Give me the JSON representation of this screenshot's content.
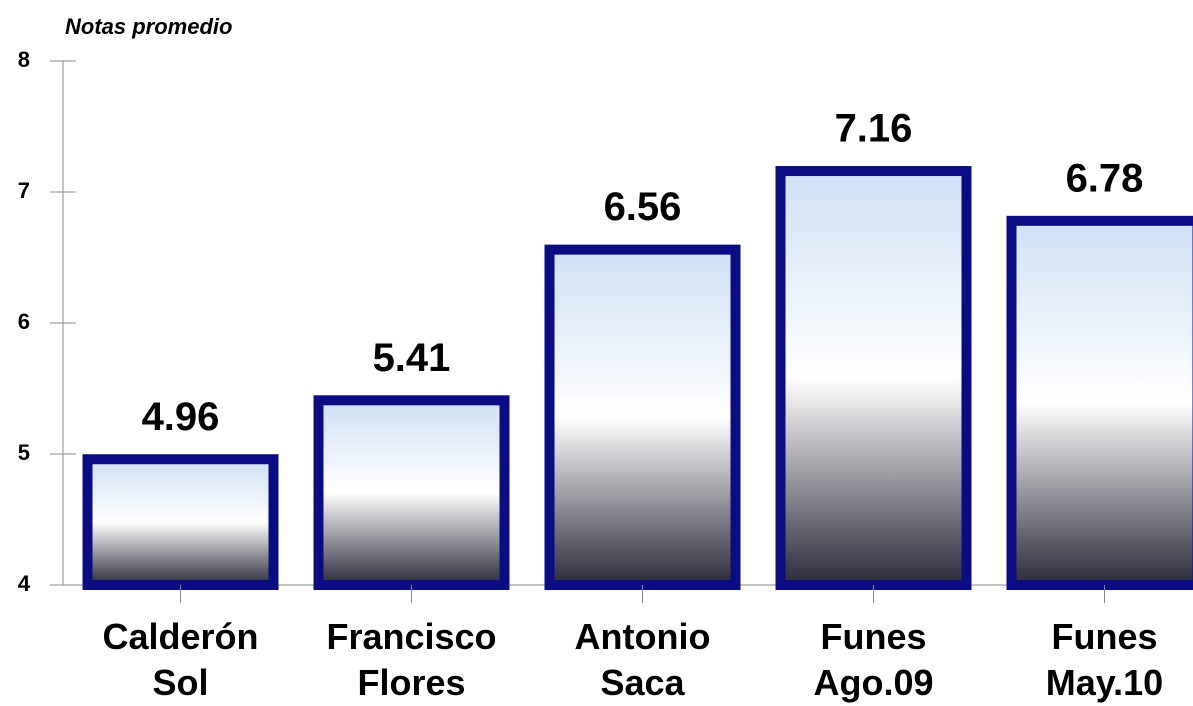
{
  "chart_data": {
    "type": "bar",
    "title": "Notas promedio",
    "categories": [
      "Calderón Sol",
      "Francisco Flores",
      "Antonio Saca",
      "Funes Ago.09",
      "Funes May.10"
    ],
    "values": [
      4.96,
      5.41,
      6.56,
      7.16,
      6.78
    ],
    "color": "#0c0c82",
    "ylim": [
      4,
      8
    ],
    "yticks": [
      4,
      5,
      6,
      7,
      8
    ],
    "grid": false
  }
}
